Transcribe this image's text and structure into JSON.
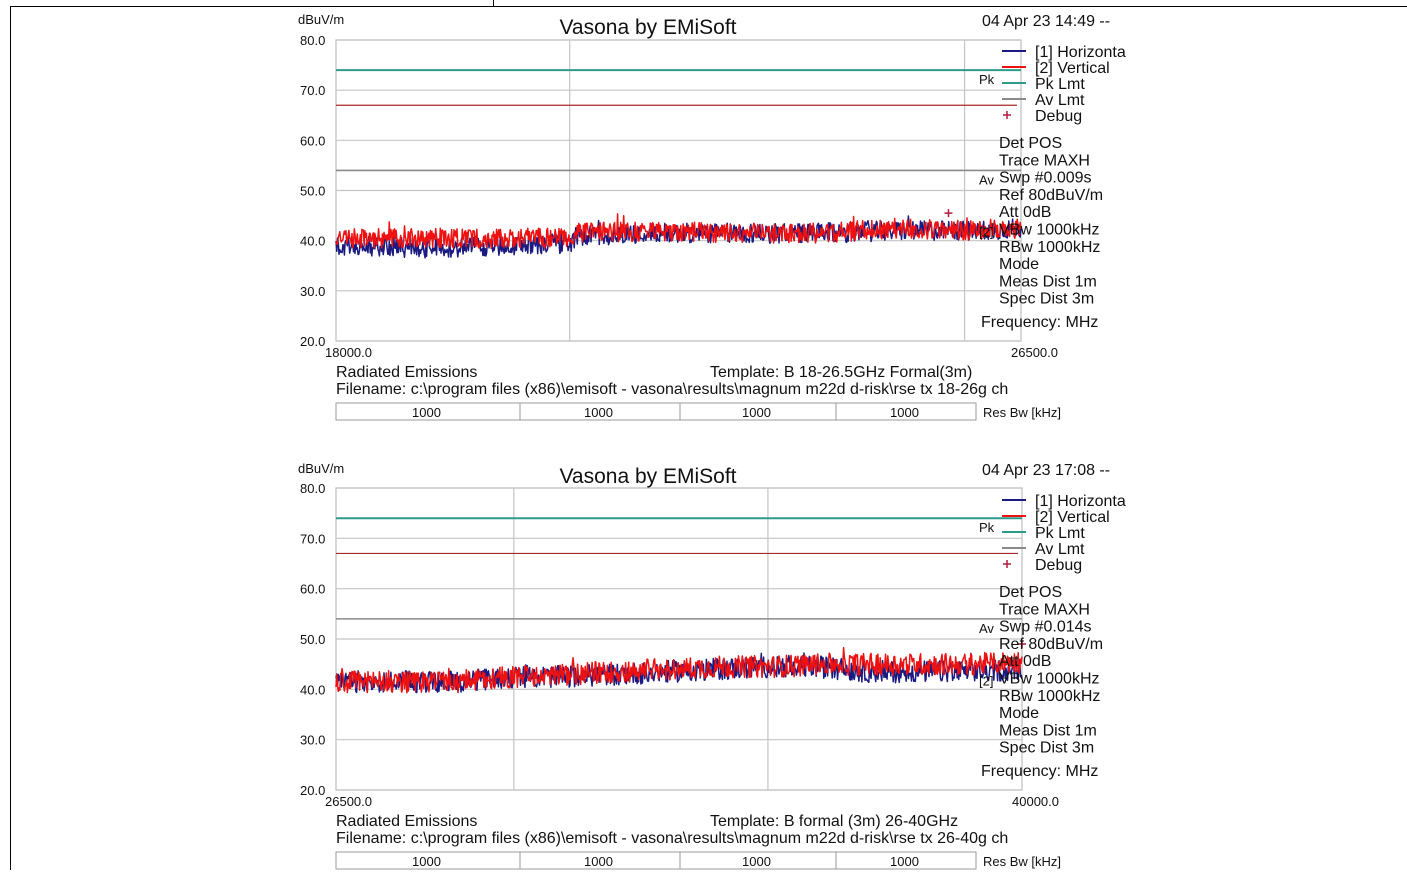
{
  "panels": [
    {
      "title": "Vasona by EMiSoft",
      "timestamp": "04 Apr 23 14:49 --",
      "y_unit": "dBuV/m",
      "x_start_label": "18000.0",
      "x_end_label": "26500.0",
      "side_labels": {
        "pk": "Pk",
        "av": "Av",
        "trace_tag": "[2]"
      },
      "legend": [
        {
          "label": "[1] Horizonta",
          "color": "#1a1a80",
          "marker": "line"
        },
        {
          "label": "[2] Vertical",
          "color": "#ee1111",
          "marker": "line"
        },
        {
          "label": "Pk Lmt",
          "color": "#2e9a8c",
          "marker": "line"
        },
        {
          "label": "Av Lmt",
          "color": "#8a8a8a",
          "marker": "line"
        },
        {
          "label": "Debug",
          "color": "#b01c3a",
          "marker": "plus"
        }
      ],
      "settings": [
        "Det POS",
        "Trace MAXH",
        "Swp  #0.009s",
        "Ref  80dBuV/m",
        "Att  0dB",
        "VBw 1000kHz",
        "RBw 1000kHz",
        "Mode",
        "Meas Dist 1m",
        "Spec Dist 3m"
      ],
      "frequency_label": "Frequency: MHz",
      "footer_left": "Radiated Emissions",
      "footer_template": "Template: B 18-26.5GHz Formal(3m)",
      "filename": "Filename: c:\\program files (x86)\\emisoft - vasona\\results\\magnum m22d d-risk\\rse tx 18-26g ch",
      "res_bw_values": [
        "1000",
        "1000",
        "1000",
        "1000"
      ],
      "res_bw_label": "Res Bw [kHz]",
      "chart_data": {
        "type": "line",
        "x_range": [
          18000,
          26500
        ],
        "ylim": [
          20,
          80
        ],
        "yticks": [
          "80.0",
          "70.0",
          "60.0",
          "50.0",
          "40.0",
          "30.0",
          "20.0"
        ],
        "vertical_gridlines_mhz": [
          20900,
          25800
        ],
        "limits": [
          {
            "name": "Pk Lmt",
            "value": 74,
            "color": "#2e9a8c"
          },
          {
            "name": "Av Lmt",
            "value": 54,
            "color": "#8a8a8a"
          }
        ],
        "extra_line": {
          "value": 67,
          "color": "#a52a2a"
        },
        "series": [
          {
            "name": "[1] Horizonta",
            "color": "#1a1a80",
            "x": [
              18000,
              19000,
              20000,
              20900,
              21000,
              22000,
              23000,
              24000,
              25000,
              26000,
              26500
            ],
            "y": [
              39.0,
              38.5,
              39.0,
              39.5,
              41.0,
              41.5,
              41.5,
              41.5,
              42.0,
              42.0,
              42.5
            ],
            "noise": 2.0
          },
          {
            "name": "[2] Vertical",
            "color": "#ee1111",
            "x": [
              18000,
              19000,
              20000,
              20900,
              21000,
              22000,
              23000,
              24000,
              25000,
              26000,
              26500
            ],
            "y": [
              40.5,
              40.5,
              40.5,
              40.5,
              41.5,
              42.0,
              41.5,
              41.5,
              42.5,
              42.0,
              42.5
            ],
            "noise": 2.0
          }
        ],
        "markers": [
          {
            "x": 25600,
            "y": 45.5,
            "color": "#b01c3a"
          }
        ]
      }
    },
    {
      "title": "Vasona by EMiSoft",
      "timestamp": "04 Apr 23 17:08 --",
      "y_unit": "dBuV/m",
      "x_start_label": "26500.0",
      "x_end_label": "40000.0",
      "side_labels": {
        "pk": "Pk",
        "av": "Av",
        "trace_tag": "[2]"
      },
      "legend": [
        {
          "label": "[1] Horizonta",
          "color": "#1a1a80",
          "marker": "line"
        },
        {
          "label": "[2] Vertical",
          "color": "#ee1111",
          "marker": "line"
        },
        {
          "label": "Pk Lmt",
          "color": "#2e9a8c",
          "marker": "line"
        },
        {
          "label": "Av Lmt",
          "color": "#8a8a8a",
          "marker": "line"
        },
        {
          "label": "Debug",
          "color": "#b01c3a",
          "marker": "plus"
        }
      ],
      "settings": [
        "Det POS",
        "Trace MAXH",
        "Swp  #0.014s",
        "Ref  80dBuV/m",
        "Att  0dB",
        "VBw 1000kHz",
        "RBw 1000kHz",
        "Mode",
        "Meas Dist 1m",
        "Spec Dist 3m"
      ],
      "frequency_label": "Frequency: MHz",
      "footer_left": "Radiated Emissions",
      "footer_template": "Template: B formal (3m) 26-40GHz",
      "filename": "Filename: c:\\program files (x86)\\emisoft - vasona\\results\\magnum m22d d-risk\\rse tx 26-40g ch",
      "res_bw_values": [
        "1000",
        "1000",
        "1000",
        "1000"
      ],
      "res_bw_label": "Res Bw [kHz]",
      "chart_data": {
        "type": "line",
        "x_range": [
          26500,
          40000
        ],
        "ylim": [
          20,
          80
        ],
        "yticks": [
          "80.0",
          "70.0",
          "60.0",
          "50.0",
          "40.0",
          "30.0",
          "20.0"
        ],
        "vertical_gridlines_mhz": [
          30000,
          35000
        ],
        "limits": [
          {
            "name": "Pk Lmt",
            "value": 74,
            "color": "#2e9a8c"
          },
          {
            "name": "Av Lmt",
            "value": 54,
            "color": "#8a8a8a"
          }
        ],
        "extra_line": {
          "value": 67,
          "color": "#a52a2a"
        },
        "series": [
          {
            "name": "[1] Horizonta",
            "color": "#1a1a80",
            "x": [
              26500,
              28000,
              29000,
              30000,
              31000,
              32000,
              33000,
              34000,
              35000,
              36000,
              37000,
              38000,
              39000,
              40000
            ],
            "y": [
              41.5,
              41.5,
              41.5,
              42.5,
              42.5,
              43.0,
              43.5,
              44.0,
              44.5,
              44.5,
              43.5,
              43.5,
              43.5,
              44.0
            ],
            "noise": 2.2
          },
          {
            "name": "[2] Vertical",
            "color": "#ee1111",
            "x": [
              26500,
              28000,
              29000,
              30000,
              31000,
              32000,
              33000,
              34000,
              35000,
              36000,
              37000,
              38000,
              39000,
              40000
            ],
            "y": [
              41.5,
              41.5,
              41.5,
              42.5,
              43.0,
              43.5,
              44.0,
              44.5,
              44.5,
              45.0,
              45.0,
              45.0,
              45.0,
              45.5
            ],
            "noise": 2.2
          }
        ],
        "markers": [
          {
            "x": 40000,
            "y": 49.0,
            "color": "#b01c3a"
          }
        ]
      }
    }
  ]
}
